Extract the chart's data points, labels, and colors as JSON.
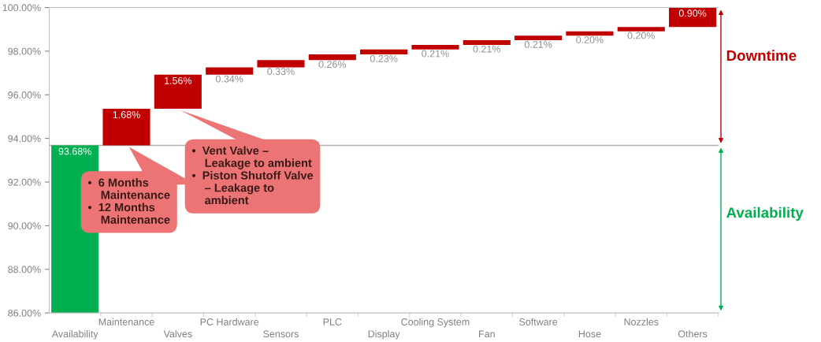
{
  "chart_data": {
    "type": "bar",
    "categories": [
      "Availability",
      "Maintenance",
      "Valves",
      "PC Hardware",
      "Sensors",
      "PLC",
      "Display",
      "Cooling System",
      "Fan",
      "Software",
      "Hose",
      "Nozzles",
      "Others"
    ],
    "values": [
      93.68,
      1.68,
      1.56,
      0.34,
      0.33,
      0.26,
      0.23,
      0.21,
      0.21,
      0.21,
      0.2,
      0.2,
      0.9
    ],
    "base": [
      0,
      93.68,
      95.36,
      96.92,
      97.26,
      97.59,
      97.85,
      98.08,
      98.29,
      98.5,
      98.71,
      98.91,
      99.11
    ],
    "colors": [
      "#00b050",
      "#c00000",
      "#c00000",
      "#c00000",
      "#c00000",
      "#c00000",
      "#c00000",
      "#c00000",
      "#c00000",
      "#c00000",
      "#c00000",
      "#c00000",
      "#c00000"
    ],
    "value_labels": [
      "93.68%",
      "1.68%",
      "1.56%",
      "0.34%",
      "0.33%",
      "0.26%",
      "0.23%",
      "0.21%",
      "0.21%",
      "0.21%",
      "0.20%",
      "0.20%",
      "0.90%"
    ],
    "ylim": [
      86,
      100
    ],
    "yticks": [
      {
        "value": 86,
        "label": "86.00%"
      },
      {
        "value": 88,
        "label": "88.00%"
      },
      {
        "value": 90,
        "label": "90.00%"
      },
      {
        "value": 92,
        "label": "92.00%"
      },
      {
        "value": 94,
        "label": "94.00%"
      },
      {
        "value": 96,
        "label": "96.00%"
      },
      {
        "value": 98,
        "label": "98.00%"
      },
      {
        "value": 100,
        "label": "100.00%"
      }
    ],
    "ref_lines": [
      {
        "axis": "y",
        "value": 93.68,
        "color": "#b0b0b0"
      }
    ],
    "annotations": [
      "Downtime",
      "Availability",
      {
        "text": "•  6 Months\n    Maintenance\n•  12 Months\n    Maintenance",
        "x": "Maintenance",
        "y": 93.68
      },
      {
        "text": "•  Vent Valve –\n    Leakage to ambient\n•  Piston Shutoff Valve\n    – Leakage to\n    ambient",
        "x": "Valves",
        "y": 95.36
      }
    ],
    "grid": false
  }
}
